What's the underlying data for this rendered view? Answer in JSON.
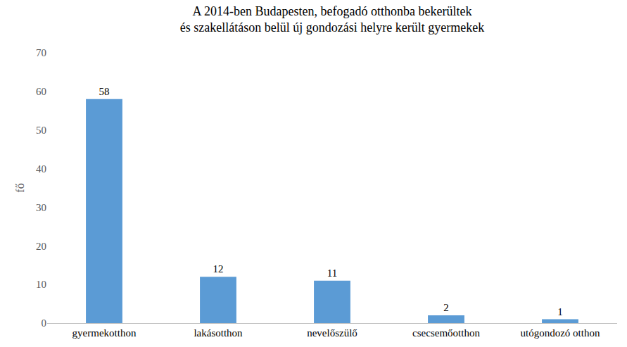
{
  "chart_data": {
    "type": "bar",
    "title": "A 2014-ben Budapesten, befogadó otthonba bekerültek\nés szakellátáson belül új gondozási helyre került gyermekek",
    "y_label": "fő",
    "categories": [
      "gyermekotthon",
      "lakásotthon",
      "nevelőszülő",
      "csecsemőotthon",
      "utógondozó otthon"
    ],
    "values": [
      58,
      12,
      11,
      2,
      1
    ],
    "color": "#5b9bd5",
    "ylim": [
      0,
      70
    ],
    "yticks": [
      0,
      10,
      20,
      30,
      40,
      50,
      60,
      70
    ],
    "grid": false,
    "data_labels": true
  }
}
